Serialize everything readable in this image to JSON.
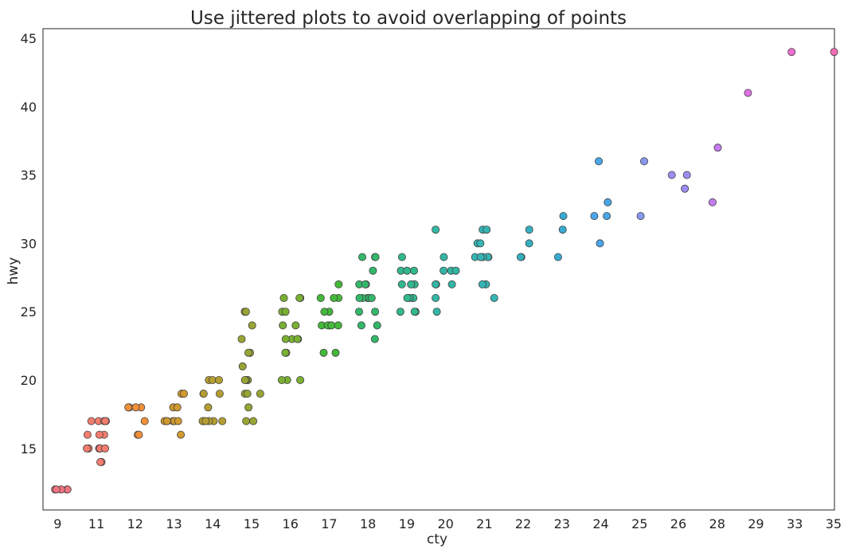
{
  "chart_data": {
    "type": "scatter",
    "title": "Use jittered plots to avoid overlapping of points",
    "xlabel": "cty",
    "ylabel": "hwy",
    "x_scale": "categorical",
    "categories": [
      "9",
      "11",
      "12",
      "13",
      "14",
      "15",
      "16",
      "17",
      "18",
      "19",
      "20",
      "21",
      "22",
      "23",
      "24",
      "25",
      "26",
      "28",
      "29",
      "33",
      "35"
    ],
    "ylim": [
      10.5,
      45.7
    ],
    "yticks": [
      15,
      20,
      25,
      30,
      35,
      40,
      45
    ],
    "grid": false,
    "legend": "none",
    "colors": [
      "#f07380",
      "#f27c6e",
      "#f08f3a",
      "#d09a30",
      "#b49e32",
      "#98a434",
      "#7ab034",
      "#44b83a",
      "#33b86a",
      "#32b88e",
      "#33b6a4",
      "#36b4b4",
      "#35b0c0",
      "#38aad0",
      "#4aa6e8",
      "#8897ee",
      "#9d8cf2",
      "#c47cf0",
      "#dd72e6",
      "#ee6ed0",
      "#f26eb6"
    ],
    "points": [
      [
        "9",
        12
      ],
      [
        "9",
        12
      ],
      [
        "9",
        12
      ],
      [
        "9",
        12
      ],
      [
        "9",
        12
      ],
      [
        "11",
        17
      ],
      [
        "11",
        17
      ],
      [
        "11",
        17
      ],
      [
        "11",
        17
      ],
      [
        "11",
        17
      ],
      [
        "11",
        16
      ],
      [
        "11",
        16
      ],
      [
        "11",
        16
      ],
      [
        "11",
        15
      ],
      [
        "11",
        15
      ],
      [
        "11",
        15
      ],
      [
        "11",
        15
      ],
      [
        "11",
        15
      ],
      [
        "11",
        15
      ],
      [
        "11",
        14
      ],
      [
        "11",
        14
      ],
      [
        "12",
        18
      ],
      [
        "12",
        18
      ],
      [
        "12",
        18
      ],
      [
        "12",
        18
      ],
      [
        "12",
        17
      ],
      [
        "12",
        16
      ],
      [
        "12",
        16
      ],
      [
        "13",
        19
      ],
      [
        "13",
        19
      ],
      [
        "13",
        19
      ],
      [
        "13",
        18
      ],
      [
        "13",
        18
      ],
      [
        "13",
        17
      ],
      [
        "13",
        17
      ],
      [
        "13",
        17
      ],
      [
        "13",
        17
      ],
      [
        "13",
        17
      ],
      [
        "13",
        17
      ],
      [
        "13",
        16
      ],
      [
        "14",
        20
      ],
      [
        "14",
        20
      ],
      [
        "14",
        20
      ],
      [
        "14",
        19
      ],
      [
        "14",
        19
      ],
      [
        "14",
        19
      ],
      [
        "14",
        18
      ],
      [
        "14",
        17
      ],
      [
        "14",
        17
      ],
      [
        "14",
        17
      ],
      [
        "14",
        17
      ],
      [
        "14",
        17
      ],
      [
        "14",
        17
      ],
      [
        "15",
        25
      ],
      [
        "15",
        25
      ],
      [
        "15",
        24
      ],
      [
        "15",
        23
      ],
      [
        "15",
        22
      ],
      [
        "15",
        22
      ],
      [
        "15",
        21
      ],
      [
        "15",
        20
      ],
      [
        "15",
        20
      ],
      [
        "15",
        20
      ],
      [
        "15",
        19
      ],
      [
        "15",
        19
      ],
      [
        "15",
        19
      ],
      [
        "15",
        18
      ],
      [
        "15",
        17
      ],
      [
        "15",
        17
      ],
      [
        "16",
        26
      ],
      [
        "16",
        26
      ],
      [
        "16",
        26
      ],
      [
        "16",
        25
      ],
      [
        "16",
        25
      ],
      [
        "16",
        24
      ],
      [
        "16",
        24
      ],
      [
        "16",
        23
      ],
      [
        "16",
        23
      ],
      [
        "16",
        23
      ],
      [
        "16",
        23
      ],
      [
        "16",
        22
      ],
      [
        "16",
        22
      ],
      [
        "16",
        20
      ],
      [
        "16",
        20
      ],
      [
        "16",
        20
      ],
      [
        "17",
        27
      ],
      [
        "17",
        26
      ],
      [
        "17",
        26
      ],
      [
        "17",
        26
      ],
      [
        "17",
        25
      ],
      [
        "17",
        25
      ],
      [
        "17",
        24
      ],
      [
        "17",
        24
      ],
      [
        "17",
        24
      ],
      [
        "17",
        24
      ],
      [
        "17",
        24
      ],
      [
        "17",
        22
      ],
      [
        "17",
        22
      ],
      [
        "18",
        29
      ],
      [
        "18",
        29
      ],
      [
        "18",
        29
      ],
      [
        "18",
        28
      ],
      [
        "18",
        27
      ],
      [
        "18",
        27
      ],
      [
        "18",
        27
      ],
      [
        "18",
        26
      ],
      [
        "18",
        26
      ],
      [
        "18",
        26
      ],
      [
        "18",
        26
      ],
      [
        "18",
        26
      ],
      [
        "18",
        25
      ],
      [
        "18",
        25
      ],
      [
        "18",
        24
      ],
      [
        "18",
        24
      ],
      [
        "18",
        23
      ],
      [
        "19",
        29
      ],
      [
        "19",
        28
      ],
      [
        "19",
        28
      ],
      [
        "19",
        28
      ],
      [
        "19",
        27
      ],
      [
        "19",
        27
      ],
      [
        "19",
        27
      ],
      [
        "19",
        26
      ],
      [
        "19",
        26
      ],
      [
        "19",
        26
      ],
      [
        "19",
        26
      ],
      [
        "19",
        25
      ],
      [
        "19",
        25
      ],
      [
        "19",
        25
      ],
      [
        "20",
        31
      ],
      [
        "20",
        29
      ],
      [
        "20",
        28
      ],
      [
        "20",
        28
      ],
      [
        "20",
        28
      ],
      [
        "20",
        27
      ],
      [
        "20",
        27
      ],
      [
        "20",
        27
      ],
      [
        "20",
        26
      ],
      [
        "20",
        25
      ],
      [
        "21",
        31
      ],
      [
        "21",
        31
      ],
      [
        "21",
        30
      ],
      [
        "21",
        30
      ],
      [
        "21",
        29
      ],
      [
        "21",
        29
      ],
      [
        "21",
        29
      ],
      [
        "21",
        29
      ],
      [
        "21",
        29
      ],
      [
        "21",
        29
      ],
      [
        "21",
        29
      ],
      [
        "21",
        27
      ],
      [
        "21",
        27
      ],
      [
        "21",
        26
      ],
      [
        "22",
        31
      ],
      [
        "22",
        30
      ],
      [
        "22",
        29
      ],
      [
        "22",
        29
      ],
      [
        "23",
        32
      ],
      [
        "23",
        31
      ],
      [
        "23",
        29
      ],
      [
        "24",
        36
      ],
      [
        "24",
        33
      ],
      [
        "24",
        32
      ],
      [
        "24",
        32
      ],
      [
        "24",
        30
      ],
      [
        "25",
        36
      ],
      [
        "25",
        32
      ],
      [
        "26",
        35
      ],
      [
        "26",
        35
      ],
      [
        "26",
        34
      ],
      [
        "28",
        37
      ],
      [
        "28",
        33
      ],
      [
        "29",
        41
      ],
      [
        "33",
        44
      ],
      [
        "35",
        44
      ]
    ]
  }
}
